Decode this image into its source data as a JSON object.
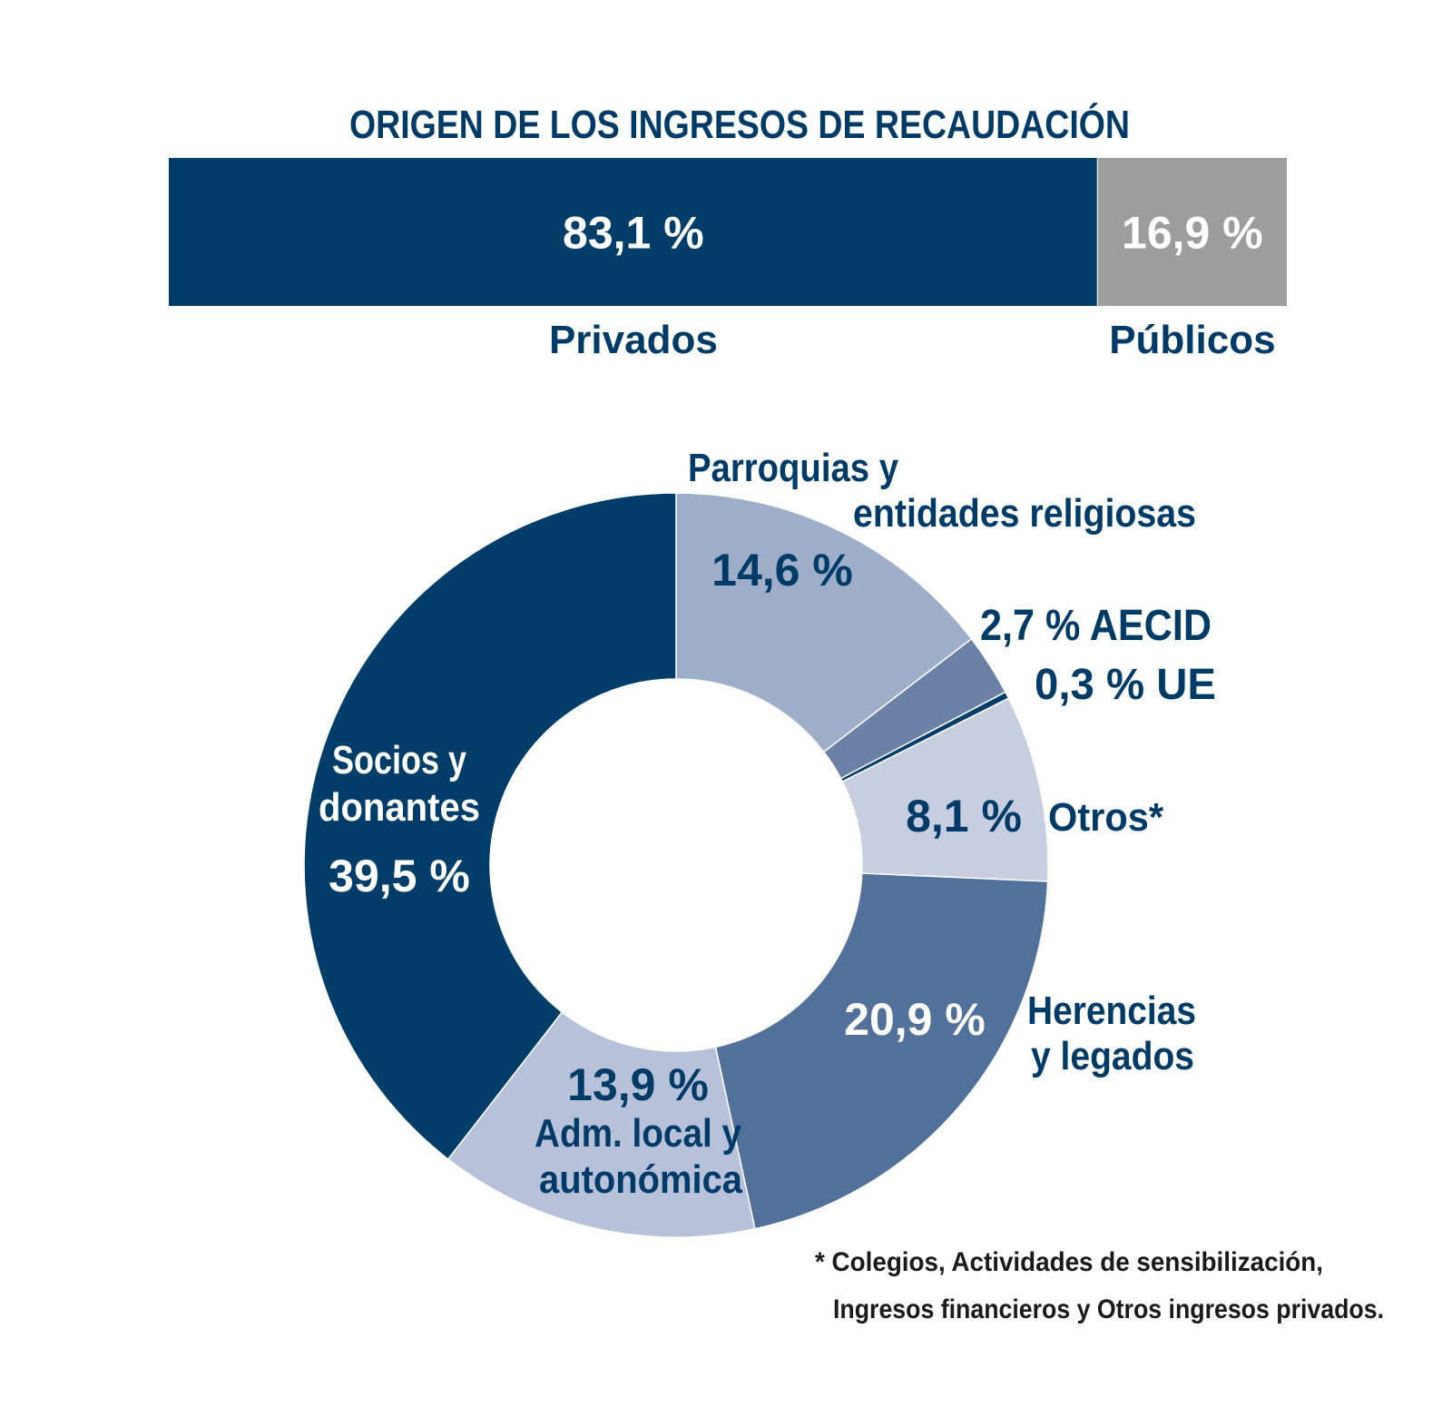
{
  "colors": {
    "background": "#ffffff",
    "title": "#003b68",
    "label_dark": "#003b68",
    "label_light": "#ffffff"
  },
  "chart_data": [
    {
      "type": "bar",
      "orientation": "stacked-horizontal",
      "title": "ORIGEN DE LOS INGRESOS DE RECAUDACIÓN",
      "series": [
        {
          "name": "Privados",
          "value": 83.1,
          "label": "83,1 %",
          "color": "#003d69"
        },
        {
          "name": "Públicos",
          "value": 16.9,
          "label": "16,9 %",
          "color": "#9d9d9d"
        }
      ],
      "unit": "%"
    },
    {
      "type": "pie",
      "style": "donut",
      "slices": [
        {
          "key": "parroquias",
          "lines": [
            "Parroquias y",
            "entidades religiosas"
          ],
          "value": 14.6,
          "label": "14,6 %",
          "color": "#9eaec8"
        },
        {
          "key": "aecid",
          "lines": [
            "AECID"
          ],
          "value": 2.7,
          "label": "2,7 %",
          "color": "#6b82a6"
        },
        {
          "key": "ue",
          "lines": [
            "UE"
          ],
          "value": 0.3,
          "label": "0,3 %",
          "color": "#003d69"
        },
        {
          "key": "otros",
          "lines": [
            "Otros*"
          ],
          "value": 8.1,
          "label": "8,1 %",
          "color": "#c6cee0"
        },
        {
          "key": "herencias",
          "lines": [
            "Herencias",
            "y legados"
          ],
          "value": 20.9,
          "label": "20,9 %",
          "color": "#52719a"
        },
        {
          "key": "adm",
          "lines": [
            "Adm. local y",
            "autonómica"
          ],
          "value": 13.9,
          "label": "13,9 %",
          "color": "#b7c2da"
        },
        {
          "key": "socios",
          "lines": [
            "Socios y",
            "donantes"
          ],
          "value": 39.5,
          "label": "39,5 %",
          "color": "#003d69"
        }
      ],
      "unit": "%"
    }
  ],
  "footnote": {
    "line1": "* Colegios,  Actividades de sensibilización,",
    "line2": "Ingresos financieros y Otros ingresos privados."
  }
}
